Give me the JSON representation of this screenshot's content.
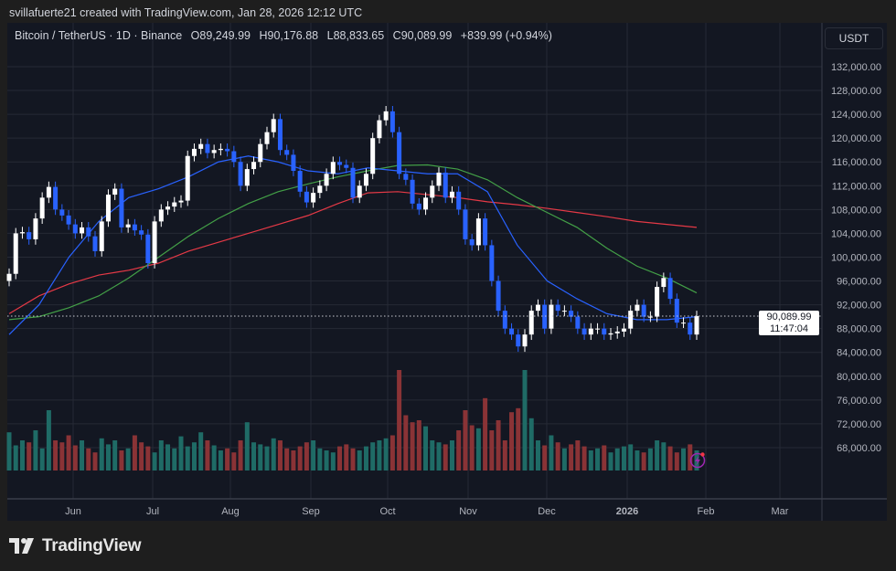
{
  "attribution": "svillafuerte21 created with TradingView.com, Jan 28, 2026 12:12 UTC",
  "legend": {
    "symbol": "Bitcoin / TetherUS · 1D · Binance",
    "open": "O89,249.99",
    "high": "H90,176.88",
    "low": "L88,833.65",
    "close": "C90,089.99",
    "change": "+839.99 (+0.94%)"
  },
  "currency_button": "USDT",
  "price_tag": {
    "price": "90,089.99",
    "countdown": "11:47:04"
  },
  "logo_text": "TradingView",
  "colors": {
    "up": "#ffffff",
    "down": "#2962ff",
    "ma_blue": "#2962ff",
    "ma_green": "#43a047",
    "ma_red": "#e53946",
    "vol_up": "#1f6b66",
    "vol_down": "#8a3336",
    "background": "#131722"
  },
  "icons": {
    "alert": "lightning-icon",
    "logo": "tradingview-logo-icon"
  },
  "chart_data": {
    "type": "candlestick",
    "x_range": [
      "2025-05-21",
      "2026-01-28"
    ],
    "x_ticks": [
      "Jun",
      "Jul",
      "Aug",
      "Sep",
      "Oct",
      "Nov",
      "Dec",
      "2026",
      "Feb",
      "Mar"
    ],
    "y_ticks": [
      "132,000.00",
      "128,000.00",
      "124,000.00",
      "120,000.00",
      "116,000.00",
      "112,000.00",
      "108,000.00",
      "104,000.00",
      "100,000.00",
      "96,000.00",
      "92,000.00",
      "88,000.00",
      "84,000.00",
      "80,000.00",
      "76,000.00",
      "72,000.00",
      "68,000.00"
    ],
    "ylim": [
      64000,
      132000
    ],
    "last_price": 90089.99,
    "closes": [
      97200,
      104000,
      104200,
      103000,
      106500,
      110000,
      111800,
      108000,
      107000,
      105500,
      104000,
      105000,
      103500,
      101000,
      106000,
      110500,
      111500,
      105000,
      105500,
      104500,
      103800,
      99000,
      106000,
      108000,
      108500,
      109200,
      109500,
      117000,
      118200,
      119000,
      117500,
      118000,
      118200,
      117800,
      116000,
      112000,
      114800,
      116000,
      119000,
      121000,
      123200,
      118000,
      117200,
      114500,
      111000,
      109200,
      110800,
      112000,
      114000,
      116000,
      115500,
      115000,
      110000,
      112000,
      114000,
      120000,
      123000,
      124500,
      121000,
      114000,
      113000,
      109000,
      108000,
      110000,
      112000,
      114200,
      110000,
      111000,
      108000,
      103000,
      102000,
      106500,
      102000,
      96000,
      91000,
      88000,
      87000,
      85000,
      87000,
      91000,
      92000,
      88000,
      92000,
      91000,
      91000,
      90000,
      88000,
      87000,
      88000,
      88000,
      87000,
      87200,
      87500,
      88000,
      91000,
      92000,
      90000,
      90000,
      95000,
      96500,
      93000,
      89000,
      89000,
      87000,
      90089.99
    ],
    "volume": [
      38,
      25,
      30,
      28,
      40,
      22,
      60,
      30,
      28,
      35,
      25,
      30,
      22,
      18,
      32,
      26,
      30,
      20,
      22,
      35,
      28,
      24,
      18,
      30,
      26,
      22,
      34,
      24,
      28,
      38,
      30,
      25,
      20,
      22,
      18,
      30,
      48,
      28,
      26,
      24,
      32,
      30,
      22,
      20,
      24,
      28,
      30,
      22,
      20,
      18,
      24,
      26,
      22,
      20,
      24,
      28,
      30,
      32,
      35,
      100,
      55,
      48,
      50,
      44,
      30,
      28,
      26,
      30,
      40,
      60,
      45,
      42,
      72,
      40,
      50,
      30,
      58,
      62,
      100,
      52,
      30,
      25,
      35,
      28,
      22,
      26,
      30,
      24,
      20,
      22,
      25,
      18,
      22,
      24,
      26,
      20,
      18,
      22,
      30,
      28,
      24,
      18,
      22,
      26,
      20
    ],
    "ma_blue": [
      87000,
      92000,
      100000,
      106000,
      110000,
      111500,
      113500,
      116000,
      117000,
      116000,
      114500,
      114000,
      115000,
      114500,
      114000,
      114000,
      111000,
      102000,
      96000,
      93000,
      90500,
      89500,
      89500,
      90000
    ],
    "ma_green": [
      89500,
      90000,
      91500,
      93500,
      96500,
      100000,
      103500,
      106500,
      109000,
      111000,
      112300,
      113500,
      114500,
      115400,
      115500,
      114800,
      113000,
      110000,
      107500,
      105000,
      101500,
      98500,
      96500,
      94000
    ],
    "ma_red": [
      90500,
      93500,
      95500,
      97000,
      97800,
      99000,
      101000,
      102500,
      104000,
      105500,
      107000,
      109000,
      110800,
      111000,
      110500,
      110000,
      109300,
      108800,
      108200,
      107500,
      106800,
      106000,
      105500,
      105000
    ]
  }
}
